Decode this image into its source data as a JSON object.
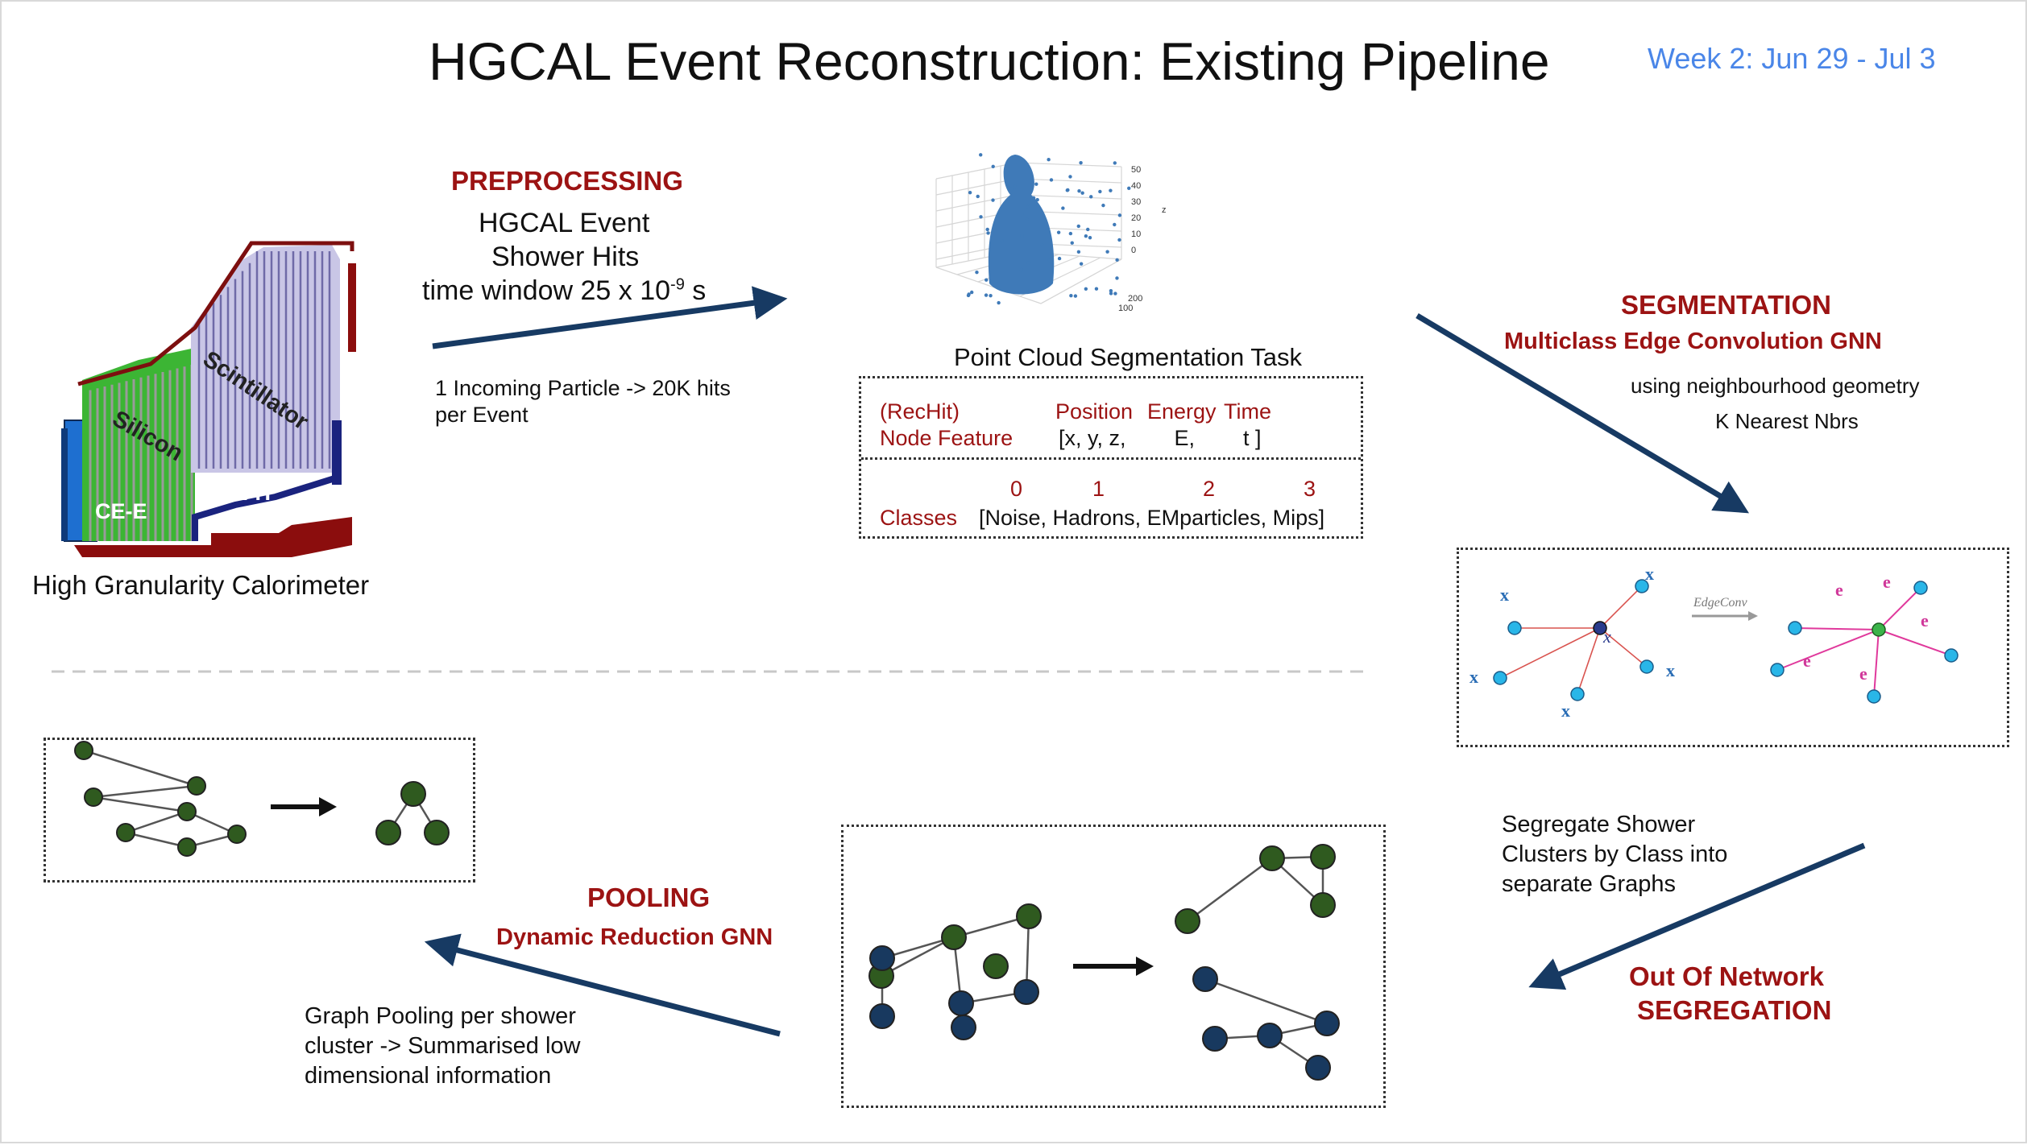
{
  "title": "HGCAL Event Reconstruction: Existing Pipeline",
  "week": "Week 2: Jun 29 - Jul 3",
  "colors": {
    "dark_red": "#9c1313",
    "navy_arrow": "#173a63",
    "week_blue": "#4a86e8",
    "node_green": "#2f5a1f",
    "node_blue": "#18395f",
    "point_blue": "#3f7ab8"
  },
  "detector": {
    "caption": "High Granularity Calorimeter",
    "labels": {
      "scintillator": "Scintillator",
      "silicon": "Silicon",
      "ce_e": "CE-E",
      "ce_h": "CE-H"
    }
  },
  "preprocessing": {
    "heading": "PREPROCESSING",
    "line1": "HGCAL Event",
    "line2": "Shower Hits",
    "line3_prefix": "time window 25 x 10",
    "line3_exp": "-9",
    "line3_suffix": " s",
    "note_line1": "1 Incoming Particle -> 20K hits",
    "note_line2": "per Event"
  },
  "point_cloud": {
    "caption": "Point Cloud Segmentation Task",
    "z_ticks": [
      "50",
      "40",
      "30",
      "20",
      "10",
      "0"
    ],
    "z_label": "z",
    "y_ticks": [
      "200",
      "100"
    ]
  },
  "features_table": {
    "row1_label_a": "(RecHit)",
    "row1_label_b": "Node Feature",
    "header_position": "Position",
    "header_energy": "Energy",
    "header_time": "Time",
    "values": "[x, y, z,        E,        t ]",
    "class_nums": [
      "0",
      "1",
      "2",
      "3"
    ],
    "classes_label": "Classes",
    "classes_values": "[Noise, Hadrons, EMparticles, Mips]"
  },
  "segmentation": {
    "heading": "SEGMENTATION",
    "subheading": "Multiclass Edge Convolution GNN",
    "note_line1": "using neighbourhood geometry",
    "note_line2": "K Nearest Nbrs"
  },
  "edgeconv": {
    "arrow_label": "EdgeConv",
    "left_labels": [
      "x",
      "x",
      "x",
      "x",
      "x",
      "x"
    ],
    "right_edge_labels": [
      "e",
      "e",
      "e",
      "e",
      "e"
    ]
  },
  "segregation": {
    "note_line1": "Segregate Shower",
    "note_line2": "Clusters by Class into",
    "note_line3": "separate Graphs",
    "heading_line1": "Out Of Network",
    "heading_line2": "SEGREGATION"
  },
  "pooling": {
    "heading": "POOLING",
    "subheading": "Dynamic Reduction GNN",
    "note_line1": "Graph Pooling per shower",
    "note_line2": "cluster -> Summarised low",
    "note_line3": "dimensional information"
  }
}
